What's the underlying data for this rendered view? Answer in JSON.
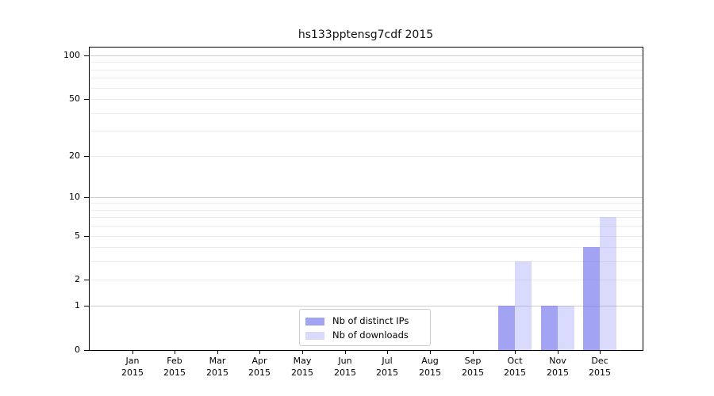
{
  "chart_data": {
    "type": "bar",
    "title": "hs133pptensg7cdf 2015",
    "categories": [
      "Jan",
      "Feb",
      "Mar",
      "Apr",
      "May",
      "Jun",
      "Jul",
      "Aug",
      "Sep",
      "Oct",
      "Nov",
      "Dec"
    ],
    "year": "2015",
    "series": [
      {
        "name": "Nb of distinct IPs",
        "color": "rgba(106,106,238,0.62)",
        "solid_color": "#a3a3f3",
        "values": [
          0,
          0,
          0,
          0,
          0,
          0,
          0,
          0,
          0,
          1,
          1,
          4
        ]
      },
      {
        "name": "Nb of downloads",
        "color": "rgba(150,150,245,0.35)",
        "solid_color": "#dadafb",
        "values": [
          0,
          0,
          0,
          0,
          0,
          0,
          0,
          0,
          0,
          3,
          1,
          7
        ]
      }
    ],
    "yscale": "log1p",
    "ylim": [
      0,
      113
    ],
    "yticks": [
      0,
      1,
      2,
      5,
      10,
      20,
      50,
      100
    ],
    "gridlines": {
      "major": [
        1,
        10,
        100
      ],
      "minor": [
        2,
        3,
        4,
        5,
        6,
        7,
        8,
        9,
        20,
        30,
        40,
        50,
        60,
        70,
        80,
        90
      ]
    },
    "legend_position": "lower center",
    "grid_on": true,
    "colors": {
      "grid_major": "#cdcdcd",
      "grid_minor": "#ededed",
      "axis": "#000000",
      "legend_border": "#cccccc"
    }
  }
}
